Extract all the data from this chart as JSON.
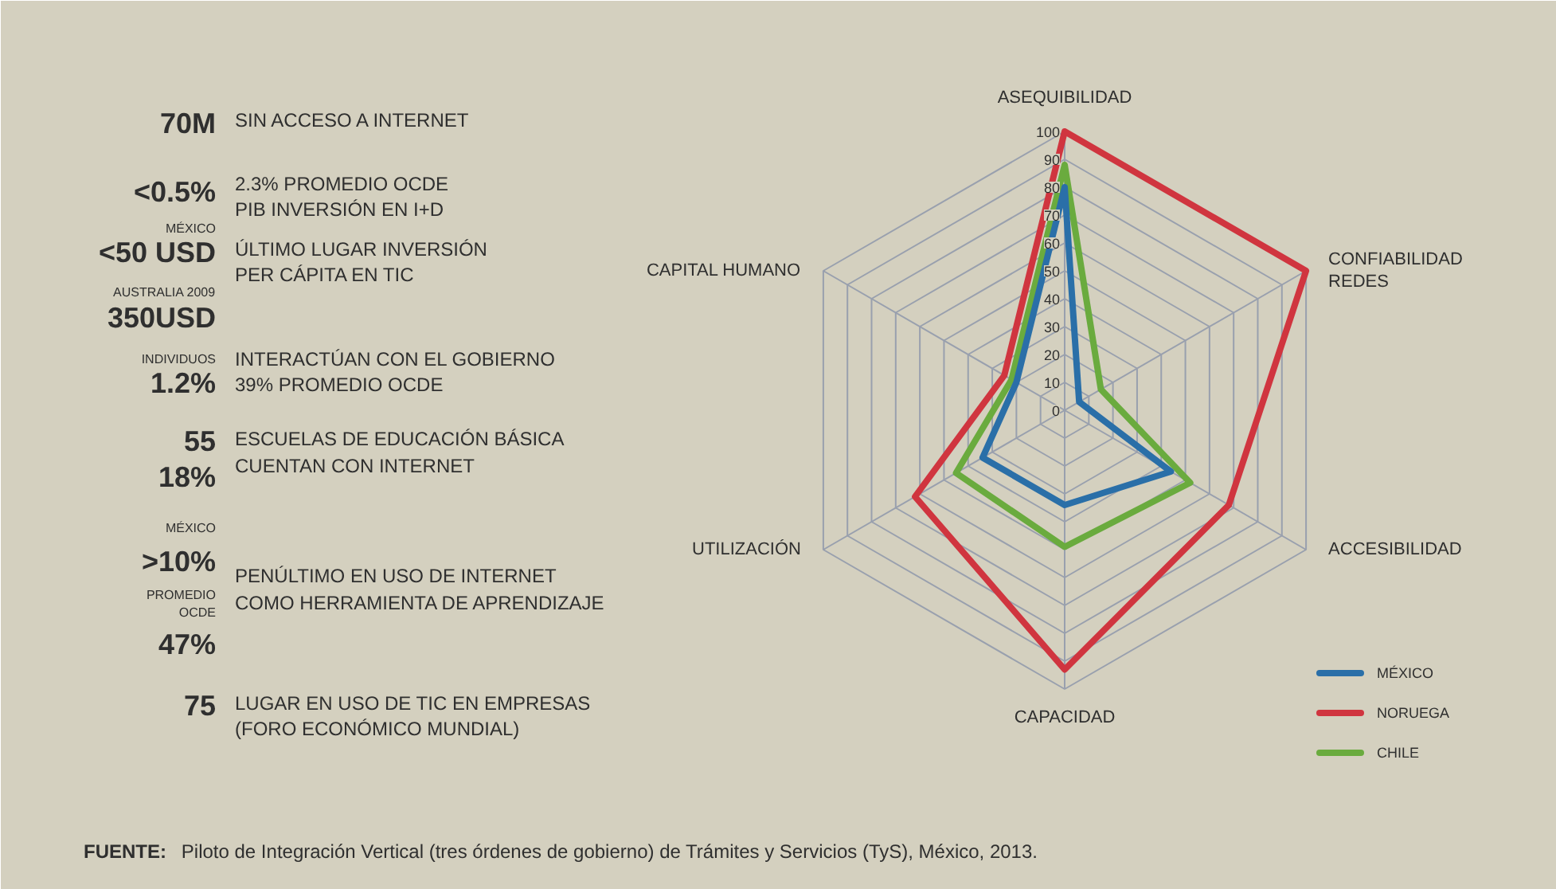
{
  "chart_data": [
    {
      "type": "other",
      "annotations": [
        "70M",
        "SIN ACCESO A INTERNET",
        "<0.5%",
        "2.3% PROMEDIO OCDE",
        "PIB INVERSIÓN EN I+D",
        "MÉXICO",
        "<50 USD",
        "ÚLTIMO LUGAR INVERSIÓN",
        "PER CÁPITA EN TIC",
        "AUSTRALIA 2009",
        "350USD",
        "INDIVIDUOS",
        "1.2%",
        "INTERACTÚAN CON EL GOBIERNO",
        "39% PROMEDIO OCDE",
        "55",
        "18%",
        "ESCUELAS DE EDUCACIÓN BÁSICA",
        "CUENTAN CON INTERNET",
        "MÉXICO",
        ">10%",
        "PENÚLTIMO EN USO DE INTERNET",
        "COMO HERRAMIENTA DE APRENDIZAJE",
        "PROMEDIO",
        "OCDE",
        "47%",
        "75",
        "LUGAR EN USO DE TIC EN EMPRESAS",
        "(FORO ECONÓMICO MUNDIAL)"
      ]
    },
    {
      "type": "radar",
      "categories": [
        "ASEQUIBILIDAD",
        "CONFIABILIDAD REDES",
        "ACCESIBILIDAD",
        "CAPACIDAD",
        "UTILIZACIÓN",
        "CAPITAL HUMANO"
      ],
      "series": [
        {
          "name": "MÉXICO",
          "color": "#2a6fa8",
          "values": [
            80,
            6,
            44,
            34,
            34,
            20
          ]
        },
        {
          "name": "NORUEGA",
          "color": "#d0353f",
          "values": [
            100,
            100,
            68,
            93,
            62,
            25
          ]
        },
        {
          "name": "CHILE",
          "color": "#6aab3e",
          "values": [
            88,
            15,
            52,
            49,
            45,
            22
          ]
        }
      ],
      "ylim": [
        0,
        100
      ],
      "yticks": [
        0,
        10,
        20,
        30,
        40,
        50,
        60,
        70,
        80,
        90,
        100
      ],
      "grid": true,
      "legend": "bottom right",
      "annotations": [
        "FUENTE: Piloto de Integración Vertical (tres órdenes de gobierno) de Trámites y Servicios (TyS), México, 2013."
      ]
    }
  ]
}
